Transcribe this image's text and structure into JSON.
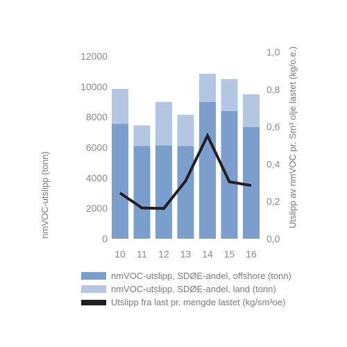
{
  "chart_data": {
    "type": "bar",
    "categories": [
      "10",
      "11",
      "12",
      "13",
      "14",
      "15",
      "16"
    ],
    "series": [
      {
        "name": "nmVOC-utslipp, SDØE-andel, offshore (tonn)",
        "values": [
          7550,
          6100,
          6150,
          6100,
          9000,
          8400,
          7350
        ],
        "color": "#7a9fce",
        "kind": "bar"
      },
      {
        "name": "nmVOC-utslipp, SDØE-andel, land (tonn)",
        "values": [
          2300,
          1350,
          2850,
          2050,
          1850,
          2100,
          2150
        ],
        "color": "#b3c7e3",
        "kind": "bar"
      },
      {
        "name": "Utslipp fra last pr. mengde lastet (kg/sm³oe)",
        "values": [
          0.245,
          0.165,
          0.162,
          0.31,
          0.552,
          0.305,
          0.285
        ],
        "color": "#231f20",
        "kind": "line",
        "axis": "right"
      }
    ],
    "stacked": true,
    "ylabel": "nmVOC-utslipp (tonn)",
    "ylabel_right": "Utslipp av nmVOC pr. Sm³ olje lastet (kg/o.e.)",
    "ylim": [
      0,
      12000
    ],
    "ylim_right": [
      0,
      1.0
    ],
    "yticks": [
      "0",
      "2000",
      "4000",
      "6000",
      "8000",
      "10000",
      "12000"
    ],
    "yticks_right": [
      "0,0",
      "0,2",
      "0,4",
      "0,6",
      "0,8",
      "1,0"
    ],
    "grid": false,
    "legend_position": "bottom"
  }
}
